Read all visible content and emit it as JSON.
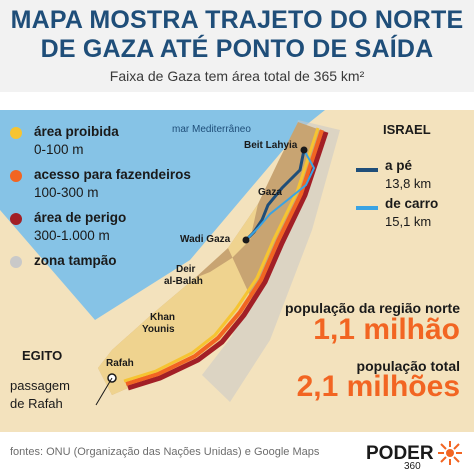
{
  "header": {
    "title_line1": "MAPA MOSTRA TRAJETO DO NORTE",
    "title_line2": "DE GAZA ATÉ PONTO DE SAÍDA",
    "subtitle": "Faixa de Gaza tem área total de 365 km²"
  },
  "legend": [
    {
      "label": "área proibida",
      "range": "0-100 m",
      "color": "#f6c431"
    },
    {
      "label": "acesso para fazendeiros",
      "range": "100-300 m",
      "color": "#f26522"
    },
    {
      "label": "área de perigo",
      "range": "300-1.000 m",
      "color": "#a21f26"
    },
    {
      "label": "zona tampão",
      "range": "",
      "color": "#c9c9c9"
    }
  ],
  "map_labels": {
    "sea": "mar Mediterrâneo",
    "israel": "ISRAEL",
    "egito": "EGITO",
    "beit_lahyia": "Beit Lahyia",
    "gaza": "Gaza",
    "wadi_gaza": "Wadi Gaza",
    "deir_line1": "Deir",
    "deir_line2": "al-Balah",
    "khan_line1": "Khan",
    "khan_line2": "Younis",
    "rafah": "Rafah",
    "passagem_line1": "passagem",
    "passagem_line2": "de Rafah"
  },
  "routes": [
    {
      "label": "a pé",
      "distance": "13,8 km",
      "color": "#1f4e79"
    },
    {
      "label": "de carro",
      "distance": "15,1 km",
      "color": "#3aa3e3"
    }
  ],
  "stats": {
    "north_label": "população da região norte",
    "north_value": "1,1 milhão",
    "total_label": "população total",
    "total_value": "2,1 milhões"
  },
  "footer": {
    "sources": "fontes: ONU (Organização das Nações Unidas) e Google Maps",
    "logo_text": "PODER",
    "logo_sub": "360"
  },
  "colors": {
    "title": "#1f4e79",
    "accent": "#f26522",
    "sea": "#86c3e6",
    "land": "#f3e2bd",
    "gaza_land": "#c8a472"
  }
}
